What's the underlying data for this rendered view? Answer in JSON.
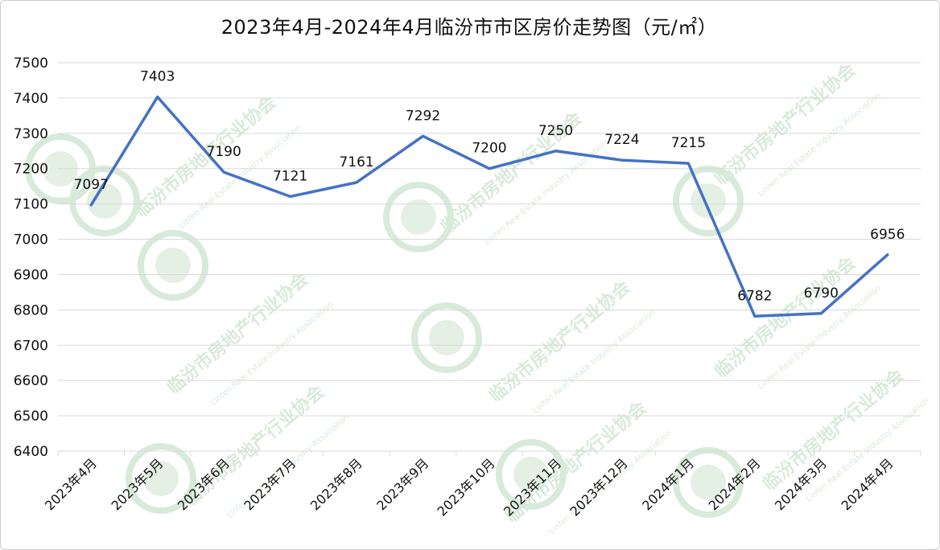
{
  "chart_data": {
    "type": "line",
    "title": "2023年4月-2024年4月临汾市市区房价走势图（元/㎡）",
    "xlabel": "",
    "ylabel": "",
    "categories": [
      "2023年4月",
      "2023年5月",
      "2023年6月",
      "2023年7月",
      "2023年8月",
      "2023年9月",
      "2023年10月",
      "2023年11月",
      "2023年12月",
      "2024年1月",
      "2024年2月",
      "2024年3月",
      "2024年4月"
    ],
    "series": [
      {
        "values": [
          7097,
          7403,
          7190,
          7121,
          7161,
          7292,
          7200,
          7250,
          7224,
          7215,
          6782,
          6790,
          6956
        ]
      }
    ],
    "ylim": [
      6400,
      7500
    ],
    "yticks": [
      6400,
      6500,
      6600,
      6700,
      6800,
      6900,
      7000,
      7100,
      7200,
      7300,
      7400,
      7500
    ],
    "grid": true,
    "legend": "none",
    "line_color": "#4472c4",
    "grid_color": "#d9d9d9"
  },
  "watermark": {
    "text": "临汾市房地产行业协会",
    "subtext": "Linfen Real Estate Industry Association",
    "color": "#d8ead9"
  }
}
